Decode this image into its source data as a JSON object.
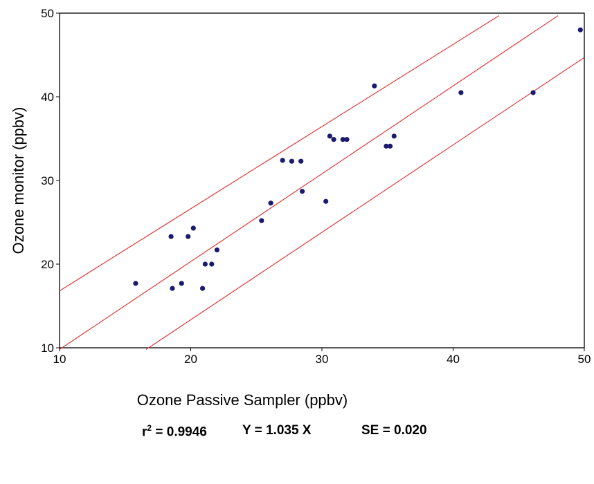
{
  "chart_data": {
    "type": "scatter",
    "xlabel": "Ozone Passive Sampler (ppbv)",
    "ylabel": "Ozone monitor (ppbv)",
    "xlim": [
      10,
      50
    ],
    "ylim": [
      10,
      50
    ],
    "xticks": [
      10,
      20,
      30,
      40,
      50
    ],
    "yticks": [
      10,
      20,
      30,
      40,
      50
    ],
    "grid": false,
    "point_color": "#1a1a6e",
    "line_color": "#e03a3a",
    "points": [
      {
        "x": 15.8,
        "y": 17.7
      },
      {
        "x": 18.5,
        "y": 23.3
      },
      {
        "x": 18.6,
        "y": 17.1
      },
      {
        "x": 19.3,
        "y": 17.7
      },
      {
        "x": 19.8,
        "y": 23.3
      },
      {
        "x": 20.2,
        "y": 24.3
      },
      {
        "x": 20.9,
        "y": 17.1
      },
      {
        "x": 21.1,
        "y": 20.0
      },
      {
        "x": 21.6,
        "y": 20.0
      },
      {
        "x": 22.0,
        "y": 21.7
      },
      {
        "x": 25.4,
        "y": 25.2
      },
      {
        "x": 26.1,
        "y": 27.3
      },
      {
        "x": 27.0,
        "y": 32.4
      },
      {
        "x": 27.7,
        "y": 32.3
      },
      {
        "x": 28.4,
        "y": 32.3
      },
      {
        "x": 28.5,
        "y": 28.7
      },
      {
        "x": 30.3,
        "y": 27.5
      },
      {
        "x": 30.6,
        "y": 35.3
      },
      {
        "x": 30.9,
        "y": 34.9
      },
      {
        "x": 31.6,
        "y": 34.9
      },
      {
        "x": 31.9,
        "y": 34.9
      },
      {
        "x": 34.0,
        "y": 41.3
      },
      {
        "x": 34.9,
        "y": 34.1
      },
      {
        "x": 35.2,
        "y": 34.1
      },
      {
        "x": 35.5,
        "y": 35.3
      },
      {
        "x": 40.6,
        "y": 40.5
      },
      {
        "x": 46.1,
        "y": 40.5
      },
      {
        "x": 49.7,
        "y": 48.0
      }
    ],
    "lines": [
      {
        "name": "upper",
        "x": [
          10,
          43.5
        ],
        "y": [
          16.8,
          49.7
        ]
      },
      {
        "name": "fit",
        "x": [
          10,
          48.0
        ],
        "y": [
          9.8,
          49.7
        ]
      },
      {
        "name": "lower",
        "x": [
          16.6,
          50
        ],
        "y": [
          9.8,
          44.7
        ]
      }
    ]
  },
  "stats": {
    "r2_prefix": "r",
    "r2_sup": "2",
    "r2_value": " = 0.9946",
    "equation": "Y = 1.035 X",
    "se": "SE = 0.020"
  }
}
